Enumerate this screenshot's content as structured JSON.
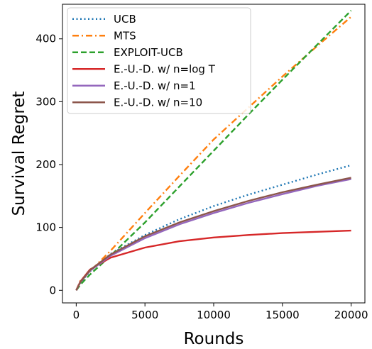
{
  "chart_data": {
    "type": "line",
    "title": "",
    "xlabel": "Rounds",
    "ylabel": "Survival Regret",
    "xlim": [
      -1000,
      21000
    ],
    "ylim": [
      -20,
      455
    ],
    "x_ticks": [
      0,
      5000,
      10000,
      15000,
      20000
    ],
    "y_ticks": [
      0,
      100,
      200,
      300,
      400
    ],
    "grid": false,
    "legend_position": "top-left",
    "series": [
      {
        "name": "UCB",
        "color": "#1f77b4",
        "style": "dotted",
        "x": [
          0,
          300,
          1000,
          2500,
          5000,
          7500,
          10000,
          12500,
          15000,
          17500,
          20000
        ],
        "y": [
          0,
          12,
          30,
          58,
          88,
          113,
          134,
          152,
          168,
          184,
          199
        ]
      },
      {
        "name": "MTS",
        "color": "#ff7f0e",
        "style": "dashdot",
        "x": [
          0,
          300,
          1000,
          2500,
          5000,
          7500,
          10000,
          12500,
          15000,
          17500,
          20000
        ],
        "y": [
          0,
          15,
          30,
          63,
          123,
          182,
          240,
          290,
          340,
          388,
          435
        ]
      },
      {
        "name": "EXPLOIT-UCB",
        "color": "#2ca02c",
        "style": "dashed",
        "x": [
          0,
          300,
          1000,
          2500,
          5000,
          7500,
          10000,
          12500,
          15000,
          17500,
          20000
        ],
        "y": [
          0,
          9,
          25,
          55,
          108,
          165,
          222,
          279,
          335,
          390,
          445
        ]
      },
      {
        "name": "E.-U.-D. w/ n=log T",
        "color": "#d62728",
        "style": "solid",
        "x": [
          0,
          300,
          1000,
          2500,
          5000,
          7500,
          10000,
          12500,
          15000,
          17500,
          20000
        ],
        "y": [
          0,
          14,
          33,
          52,
          68,
          78,
          84,
          88,
          91,
          93,
          95
        ]
      },
      {
        "name": "E.-U.-D. w/ n=1",
        "color": "#9467bd",
        "style": "solid",
        "x": [
          0,
          300,
          1000,
          2500,
          5000,
          7500,
          10000,
          12500,
          15000,
          17500,
          20000
        ],
        "y": [
          0,
          13,
          31,
          55,
          83,
          105,
          123,
          139,
          153,
          166,
          177
        ]
      },
      {
        "name": "E.-U.-D. w/ n=10",
        "color": "#8c564b",
        "style": "solid",
        "x": [
          0,
          300,
          1000,
          2500,
          5000,
          7500,
          10000,
          12500,
          15000,
          17500,
          20000
        ],
        "y": [
          0,
          13,
          32,
          57,
          86,
          108,
          126,
          142,
          156,
          168,
          179
        ]
      }
    ]
  }
}
